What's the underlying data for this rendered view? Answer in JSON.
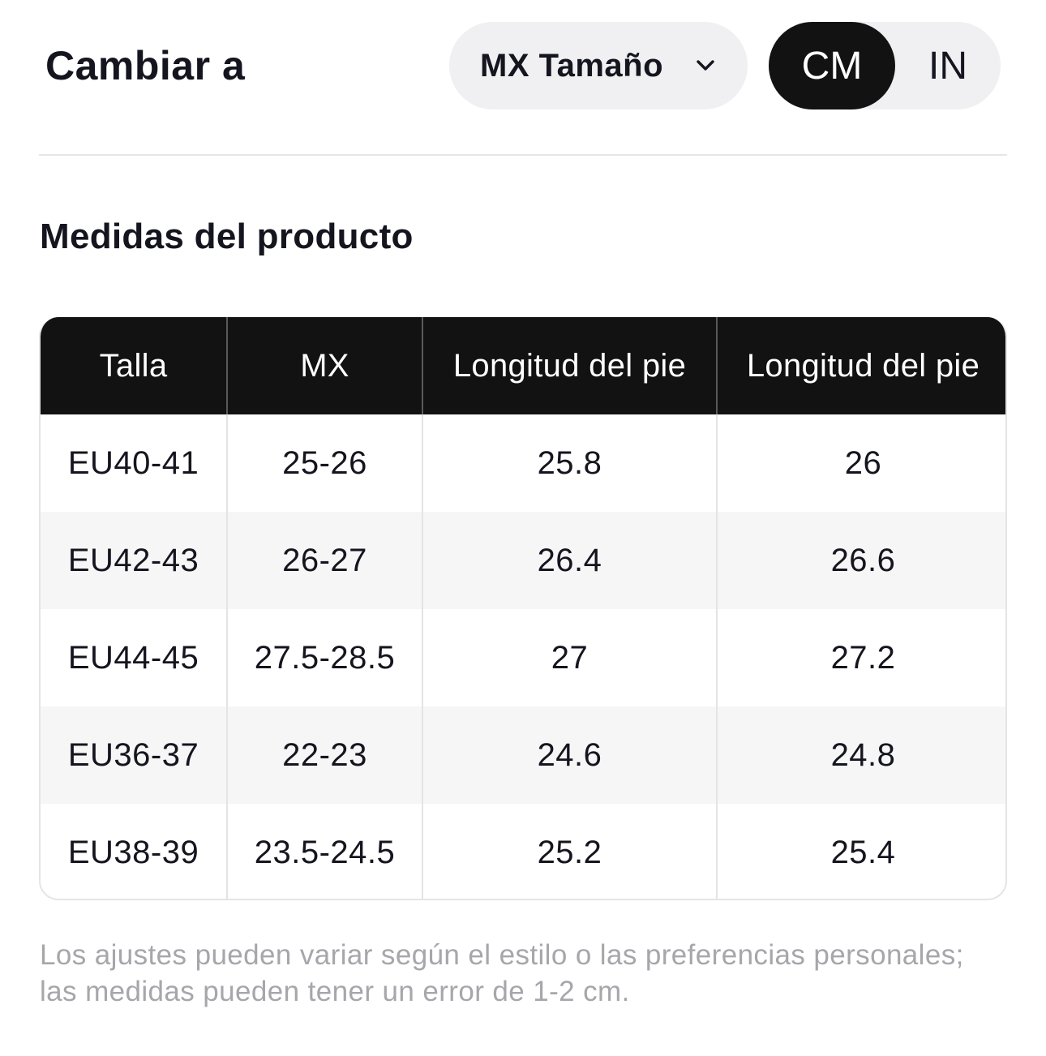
{
  "header": {
    "change_label": "Cambiar a",
    "size_select": {
      "selected": "MX Tamaño",
      "icon": "chevron-down-icon"
    },
    "unit_toggle": {
      "options": [
        "CM",
        "IN"
      ],
      "selected": "CM"
    }
  },
  "section": {
    "title": "Medidas del producto"
  },
  "table": {
    "columns": [
      "Talla",
      "MX",
      "Longitud del pie",
      "Longitud del pie"
    ],
    "rows": [
      [
        "EU40-41",
        "25-26",
        "25.8",
        "26"
      ],
      [
        "EU42-43",
        "26-27",
        "26.4",
        "26.6"
      ],
      [
        "EU44-45",
        "27.5-28.5",
        "27",
        "27.2"
      ],
      [
        "EU36-37",
        "22-23",
        "24.6",
        "24.8"
      ],
      [
        "EU38-39",
        "23.5-24.5",
        "25.2",
        "25.4"
      ]
    ]
  },
  "footnote": "Los ajustes pueden variar según el estilo o las preferencias personales; las medidas pueden tener un error de 1-2 cm.",
  "colors": {
    "header_bg": "#121212",
    "pill_bg": "#f0f0f3",
    "alt_row_bg": "#f6f6f7",
    "footnote_text": "#a6a6ab"
  }
}
